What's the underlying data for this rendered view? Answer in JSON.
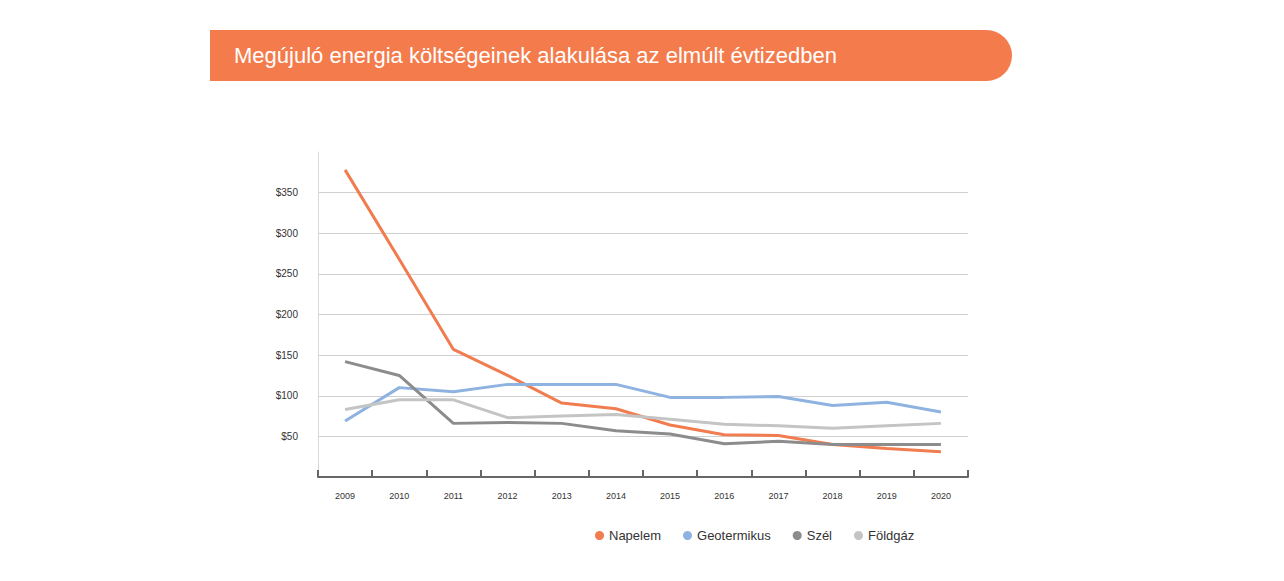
{
  "chart_data": {
    "type": "line",
    "title": "Megújuló energia költségeinek alakulása az elmúlt évtizedben",
    "categories": [
      "2009",
      "2010",
      "2011",
      "2012",
      "2013",
      "2014",
      "2015",
      "2016",
      "2017",
      "2018",
      "2019",
      "2020"
    ],
    "series": [
      {
        "name": "Napelem",
        "color": "#f07c4f",
        "values": [
          378,
          268,
          157,
          125,
          91,
          84,
          64,
          52,
          51,
          40,
          35,
          31
        ]
      },
      {
        "name": "Geotermikus",
        "color": "#8fb3e0",
        "values": [
          69,
          110,
          105,
          114,
          114,
          114,
          98,
          98,
          99,
          88,
          92,
          80
        ]
      },
      {
        "name": "Szél",
        "color": "#8c8c8c",
        "values": [
          142,
          125,
          66,
          67,
          66,
          57,
          53,
          41,
          44,
          40,
          40,
          40
        ]
      },
      {
        "name": "Földgáz",
        "color": "#c4c4c4",
        "values": [
          83,
          95,
          95,
          73,
          75,
          77,
          71,
          65,
          63,
          60,
          63,
          66
        ]
      }
    ],
    "ylim": [
      0,
      400
    ],
    "yticks": [
      {
        "value": 50,
        "label": "$50"
      },
      {
        "value": 100,
        "label": "$100"
      },
      {
        "value": 150,
        "label": "$150"
      },
      {
        "value": 200,
        "label": "$200"
      },
      {
        "value": 250,
        "label": "$250"
      },
      {
        "value": 300,
        "label": "$300"
      },
      {
        "value": 350,
        "label": "$350"
      }
    ],
    "grid": true,
    "legend": "bottom"
  }
}
